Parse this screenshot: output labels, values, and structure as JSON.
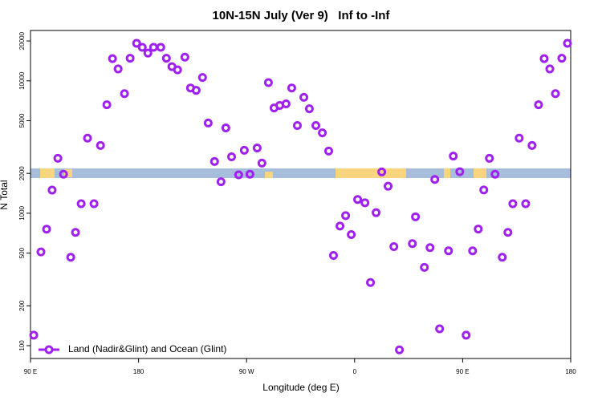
{
  "chart_data": {
    "type": "scatter",
    "title": "10N-15N July (Ver 9)   Inf to -Inf",
    "x_label": "Longitude (deg E)",
    "y_label": "N Total",
    "yscale": "log",
    "xlim": [
      90,
      540
    ],
    "ylim": [
      80,
      24000
    ],
    "xticks": [
      {
        "value": 90,
        "label": "90 E"
      },
      180,
      {
        "value": 270,
        "label": "90 W"
      },
      {
        "value": 360,
        "label": "0"
      },
      {
        "value": 450,
        "label": "90 E"
      },
      {
        "value": 540,
        "label": "180"
      }
    ],
    "yticks": [
      100,
      200,
      500,
      1000,
      2000,
      5000,
      10000,
      20000
    ],
    "legend": "lower left",
    "series": [
      {
        "name": "Land (Nadir&Glint) and Ocean (Glint)",
        "color": "#a020f0",
        "x": [
          92.7,
          98.7,
          103.4,
          108,
          112.8,
          117.5,
          123.5,
          127.5,
          132.2,
          137.5,
          142.9,
          148.3,
          153.6,
          158.3,
          163,
          168.3,
          173,
          178.4,
          183.1,
          187.8,
          192.5,
          198.5,
          203.2,
          207.8,
          212.5,
          218.6,
          223.3,
          228,
          233.3,
          238,
          243.3,
          248.7,
          252.7,
          257.5,
          263.4,
          268.1,
          272.8,
          278.8,
          282.8,
          288.2,
          292.9,
          297.6,
          302.9,
          307.6,
          312.3,
          317.7,
          322.3,
          327.7,
          333.1,
          338.4,
          342.4,
          347.8,
          352.5,
          357.2,
          362.5,
          368.6,
          373.2,
          377.9,
          382.6,
          387.9,
          392.7,
          397.3,
          408.1,
          410.7,
          418.1,
          422.8,
          426.8,
          430.8,
          438.2,
          442.2,
          447.6,
          452.9,
          458.3,
          463,
          467.6,
          472.3,
          477,
          483,
          487.7,
          491.8,
          497.1,
          502.5,
          507.8,
          513.2,
          517.9,
          522.6,
          527.3,
          532.6,
          537.3
        ],
        "values": [
          120,
          510,
          758,
          1495,
          2600,
          1970,
          465,
          717,
          1180,
          3690,
          1180,
          3250,
          6600,
          14700,
          12300,
          8000,
          14800,
          19200,
          17900,
          16200,
          17900,
          17900,
          14800,
          12800,
          12100,
          15100,
          8830,
          8470,
          10600,
          4800,
          2460,
          1730,
          4410,
          2670,
          1950,
          2990,
          1970,
          3110,
          2390,
          9700,
          6240,
          6520,
          6700,
          8830,
          4600,
          7500,
          6150,
          4600,
          4050,
          2950,
          480,
          800,
          960,
          690,
          1270,
          1200,
          300,
          1010,
          2050,
          1600,
          560,
          93,
          590,
          940,
          390,
          550,
          1800,
          134,
          520,
          2700,
          2060,
          120,
          520,
          760,
          1500,
          2600,
          1970,
          465,
          717,
          1180,
          3690,
          1180,
          3250,
          6600,
          14700,
          12300,
          8000,
          14800,
          19200
        ]
      }
    ]
  }
}
